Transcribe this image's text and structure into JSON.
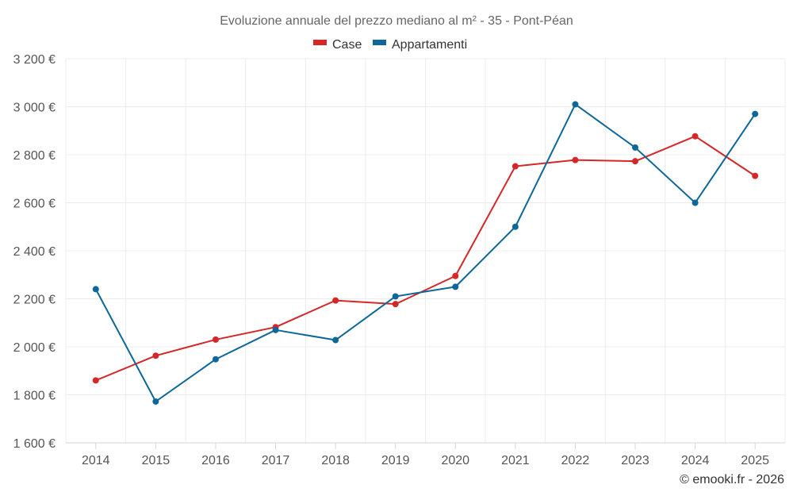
{
  "chart_data": {
    "type": "line",
    "title": "Evoluzione annuale del prezzo mediano al m² - 35 - Pont-Péan",
    "xlabel": "",
    "ylabel": "",
    "categories": [
      "2014",
      "2015",
      "2016",
      "2017",
      "2018",
      "2019",
      "2020",
      "2021",
      "2022",
      "2023",
      "2024",
      "2025"
    ],
    "ylim": [
      1600,
      3200
    ],
    "yticks": [
      1600,
      1800,
      2000,
      2200,
      2400,
      2600,
      2800,
      3000,
      3200
    ],
    "ytick_labels": [
      "1 600 €",
      "1 800 €",
      "2 000 €",
      "2 200 €",
      "2 400 €",
      "2 600 €",
      "2 800 €",
      "3 000 €",
      "3 200 €"
    ],
    "grid": true,
    "legend_position": "top-center",
    "series": [
      {
        "name": "Case",
        "color": "#d62728",
        "values": [
          1860,
          1963,
          2030,
          2082,
          2193,
          2178,
          2295,
          2752,
          2778,
          2773,
          2877,
          2712
        ]
      },
      {
        "name": "Appartamenti",
        "color": "#0d6799",
        "values": [
          2240,
          1772,
          1948,
          2070,
          2028,
          2210,
          2250,
          2500,
          3010,
          2830,
          2600,
          2970
        ]
      }
    ]
  },
  "credit": "© emooki.fr - 2026"
}
